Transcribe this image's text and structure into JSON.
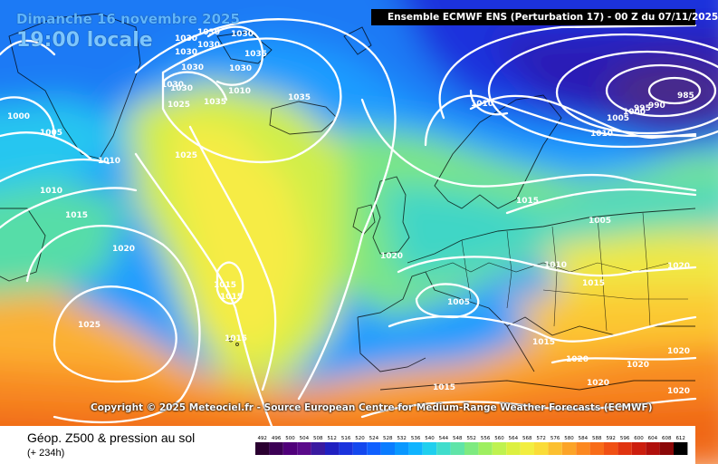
{
  "header": {
    "date": "Dimanche 16 novembre 2025",
    "time": "19:00 locale",
    "run": "Ensemble ECMWF ENS  (Perturbation 17)  -  00 Z du 07/11/2025"
  },
  "footer": {
    "copyright": "Copyright © 2025 Meteociel.fr - Source European Centre for Medium-Range Weather Forecasts (ECMWF)",
    "parameter": "Géop. Z500 & pression au sol",
    "lead": "(+ 234h)"
  },
  "isobar_labels": [
    {
      "id": "iso-1030-a",
      "text": "1030"
    },
    {
      "id": "iso-1030-b",
      "text": "1030"
    },
    {
      "id": "iso-1030-c",
      "text": "1030"
    },
    {
      "id": "iso-1030-d",
      "text": "1030"
    },
    {
      "id": "iso-1030-e",
      "text": "1030"
    },
    {
      "id": "iso-1030-f",
      "text": "1030"
    },
    {
      "id": "iso-1030-g",
      "text": "1030"
    },
    {
      "id": "iso-1030-h",
      "text": "1030"
    },
    {
      "id": "iso-1030-i",
      "text": "1030"
    },
    {
      "id": "iso-1035-a",
      "text": "1035"
    },
    {
      "id": "iso-1035-b",
      "text": "1035"
    },
    {
      "id": "iso-1035-c",
      "text": "1035"
    },
    {
      "id": "iso-1025-a",
      "text": "1025"
    },
    {
      "id": "iso-1025-b",
      "text": "1025"
    },
    {
      "id": "iso-1025-c",
      "text": "1025"
    },
    {
      "id": "iso-1020-a",
      "text": "1020"
    },
    {
      "id": "iso-1020-b",
      "text": "1020"
    },
    {
      "id": "iso-1020-c",
      "text": "1020"
    },
    {
      "id": "iso-1020-d",
      "text": "1020"
    },
    {
      "id": "iso-1020-e",
      "text": "1020"
    },
    {
      "id": "iso-1020-f",
      "text": "1020"
    },
    {
      "id": "iso-1020-g",
      "text": "1020"
    },
    {
      "id": "iso-1020-h",
      "text": "1020"
    },
    {
      "id": "iso-1015-a",
      "text": "1015"
    },
    {
      "id": "iso-1015-b",
      "text": "1015"
    },
    {
      "id": "iso-1015-c",
      "text": "1015"
    },
    {
      "id": "iso-1015-d",
      "text": "1015"
    },
    {
      "id": "iso-1015-e",
      "text": "1015"
    },
    {
      "id": "iso-1015-f",
      "text": "1015"
    },
    {
      "id": "iso-1015-g",
      "text": "1015"
    },
    {
      "id": "iso-1015-h",
      "text": "1015"
    },
    {
      "id": "iso-1010-a",
      "text": "1010"
    },
    {
      "id": "iso-1010-b",
      "text": "1010"
    },
    {
      "id": "iso-1010-c",
      "text": "1010"
    },
    {
      "id": "iso-1010-d",
      "text": "1010"
    },
    {
      "id": "iso-1010-e",
      "text": "1010"
    },
    {
      "id": "iso-1010-f",
      "text": "1010"
    },
    {
      "id": "iso-1005-a",
      "text": "1005"
    },
    {
      "id": "iso-1005-b",
      "text": "1005"
    },
    {
      "id": "iso-1005-c",
      "text": "1005"
    },
    {
      "id": "iso-1005-d",
      "text": "1005"
    },
    {
      "id": "iso-1000-a",
      "text": "1000"
    },
    {
      "id": "iso-1000-b",
      "text": "1000"
    },
    {
      "id": "iso-995",
      "text": "995"
    },
    {
      "id": "iso-990",
      "text": "990"
    },
    {
      "id": "iso-985",
      "text": "985"
    }
  ],
  "scale": {
    "ticks": [
      "492",
      "496",
      "500",
      "504",
      "508",
      "512",
      "516",
      "520",
      "524",
      "528",
      "532",
      "536",
      "540",
      "544",
      "548",
      "552",
      "556",
      "560",
      "564",
      "568",
      "572",
      "576",
      "580",
      "584",
      "588",
      "592",
      "596",
      "600",
      "604",
      "608",
      "612"
    ],
    "colors": [
      "#2a0030",
      "#3c0055",
      "#50007a",
      "#5a0a8a",
      "#3a1aa0",
      "#2020c0",
      "#1a33dd",
      "#1448ee",
      "#1060ff",
      "#0a7cff",
      "#0a98ff",
      "#10b4ff",
      "#20cfee",
      "#40ddcc",
      "#60e4a8",
      "#7eea80",
      "#9eef60",
      "#bff250",
      "#dcf040",
      "#f2ee40",
      "#fadc38",
      "#fcc030",
      "#fca428",
      "#fc8820",
      "#f86c18",
      "#f05014",
      "#e03410",
      "#cc1e0e",
      "#b0100c",
      "#8a0808",
      "#000000"
    ]
  }
}
